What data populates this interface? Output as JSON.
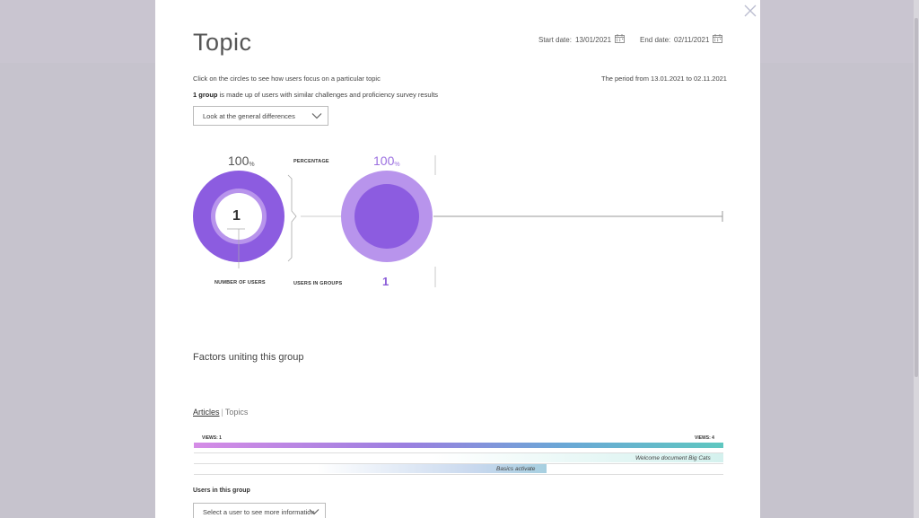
{
  "modal": {
    "title": "Topic",
    "start_label": "Start date:",
    "start_value": "13/01/2021",
    "end_label": "End date:",
    "end_value": "02/11/2021",
    "instruction": "Click on the circles to see how users focus on a particular topic",
    "period_text": "The period from  13.01.2021 to 02.11.2021",
    "group_bold": "1 group",
    "group_text": " is made up of users with similar challenges and proficiency survey results",
    "view_dropdown": "Look at the general differences"
  },
  "circles": {
    "left_percent": "100",
    "right_percent": "100",
    "percent_sign": "%",
    "center_value": "1",
    "percentage_label": "PERCENTAGE",
    "number_of_users_label": "NUMBER OF USERS",
    "users_in_groups_label": "USERS IN GROUPS",
    "users_in_groups_value": "1",
    "left_ring_fraction": 1.0,
    "right_ring_fraction": 1.0
  },
  "factors": {
    "title": "Factors uniting this group",
    "tab_articles": "Articles",
    "tab_sep": "|",
    "tab_topics": "Topics",
    "views_min": "VIEWS: 1",
    "views_max": "VIEWS: 4",
    "articles": [
      {
        "label": "Welcome document Big Cats",
        "views": 4
      },
      {
        "label": "Basics activate",
        "views": 3
      }
    ]
  },
  "users": {
    "title": "Users in this group",
    "select_placeholder": "Select a user to see more information"
  },
  "colors": {
    "purple_dark": "#8c5ce0",
    "purple_light": "#b894ec"
  }
}
